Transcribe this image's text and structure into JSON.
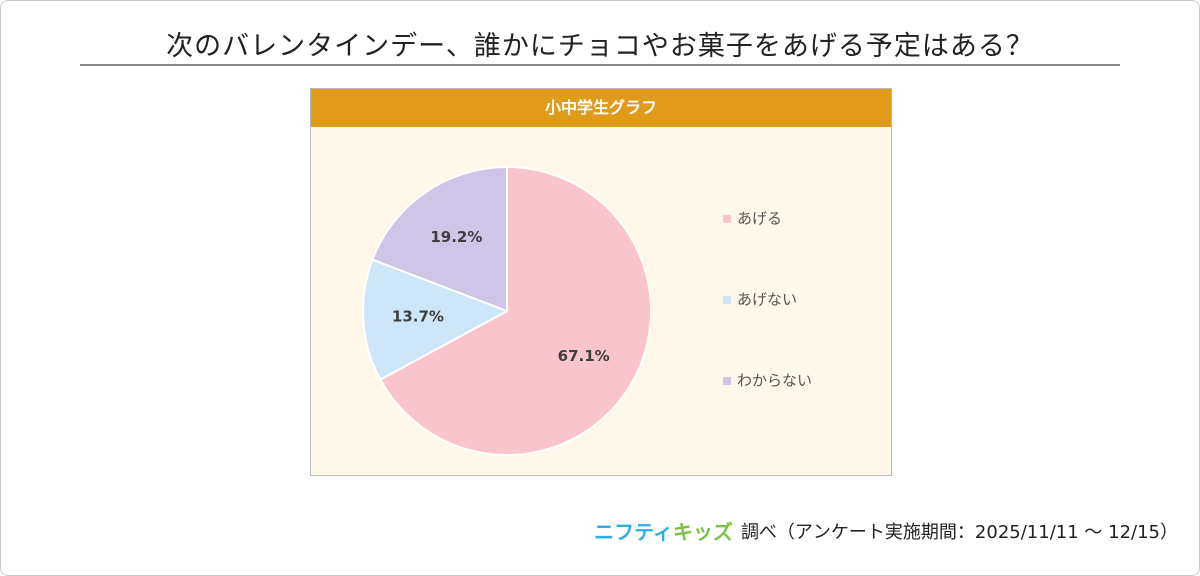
{
  "title": "次のバレンタインデー、誰かにチョコやお菓子をあげる予定はある？",
  "chart_data": {
    "type": "pie",
    "title": "小中学生グラフ",
    "slices": [
      {
        "label": "あげる",
        "value": 67.1,
        "value_label": "67.1%",
        "color": "#f9c4cb"
      },
      {
        "label": "あげない",
        "value": 13.7,
        "value_label": "13.7%",
        "color": "#cfe5f8"
      },
      {
        "label": "わからない",
        "value": 19.2,
        "value_label": "19.2%",
        "color": "#cfc5e6"
      }
    ],
    "legend_position": "right",
    "start_angle": "12 o'clock",
    "direction": "clockwise"
  },
  "footer": {
    "logo_part1": "ニフティ",
    "logo_part2": "キッズ",
    "source": "調べ（アンケート実施期間：2025/11/11 ～ 12/15）"
  },
  "colors": {
    "header": "#e09b1b",
    "chart_background": "#fff8ea"
  }
}
